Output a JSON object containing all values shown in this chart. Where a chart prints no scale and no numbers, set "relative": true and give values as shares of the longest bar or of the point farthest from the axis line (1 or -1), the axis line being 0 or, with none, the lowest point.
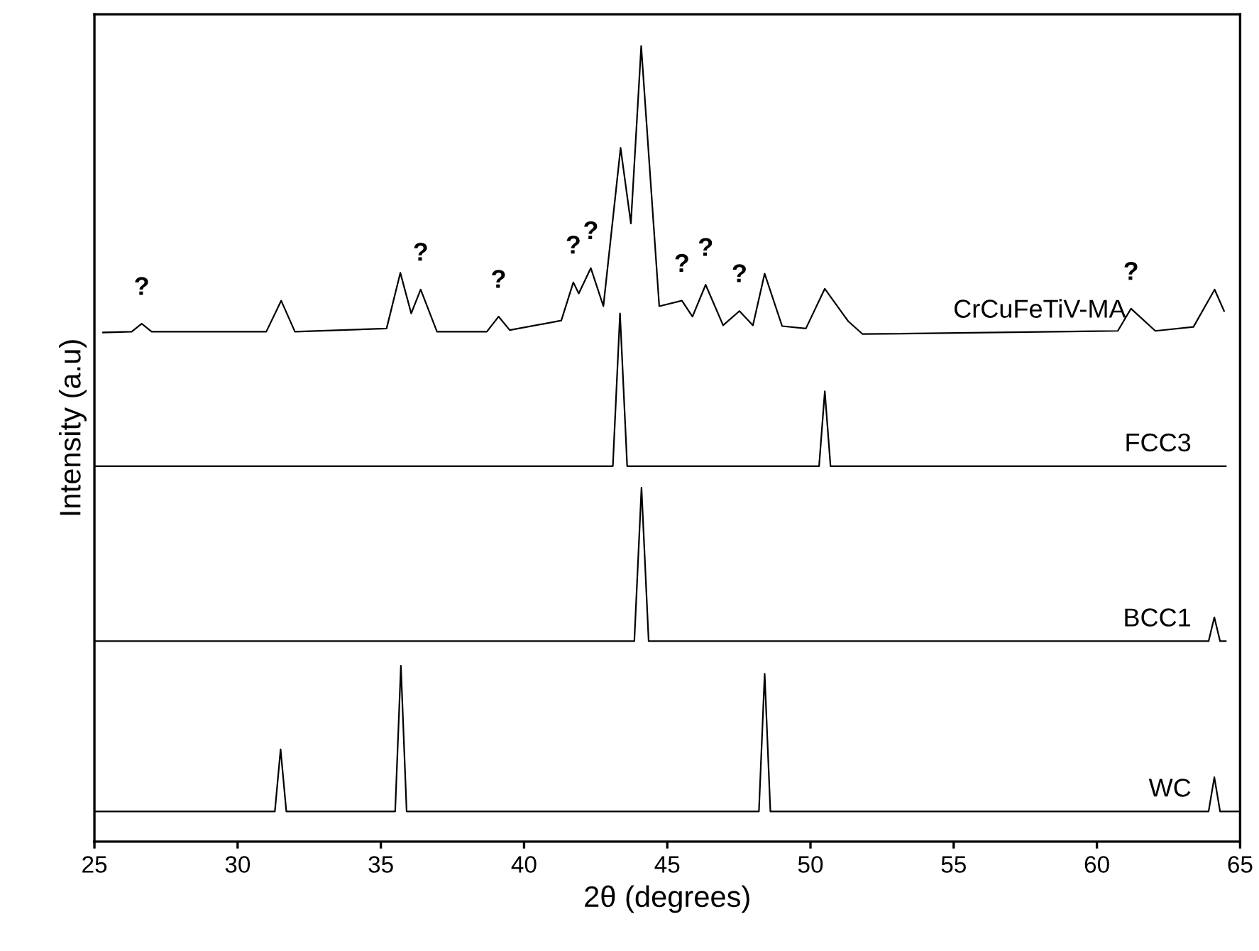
{
  "chart_data": {
    "type": "line",
    "relative": true,
    "xlabel": "2θ (degrees)",
    "ylabel": "Intensity (a.u)",
    "xlim": [
      25,
      65
    ],
    "xticks": [
      25,
      30,
      35,
      40,
      45,
      50,
      55,
      60,
      65
    ],
    "tick_labels": "x",
    "grid": false,
    "marker": "none",
    "line_style": "solid",
    "series": [
      {
        "name": "CrCuFeTiV-MA",
        "color": "#000000",
        "x": [
          25.3,
          26.3,
          26.65,
          27.0,
          31.0,
          31.52,
          32.0,
          35.2,
          35.68,
          36.06,
          36.39,
          36.96,
          38.7,
          39.11,
          39.5,
          41.3,
          41.72,
          41.91,
          42.33,
          42.77,
          43.37,
          43.73,
          44.09,
          44.72,
          45.51,
          45.88,
          46.34,
          46.95,
          47.52,
          47.99,
          48.4,
          49.01,
          49.84,
          50.5,
          51.32,
          51.82,
          60.73,
          61.19,
          62.04,
          63.37,
          64.11,
          64.44
        ],
        "values": [
          0.64,
          0.641,
          0.651,
          0.641,
          0.641,
          0.68,
          0.641,
          0.645,
          0.715,
          0.664,
          0.694,
          0.641,
          0.641,
          0.66,
          0.643,
          0.655,
          0.703,
          0.689,
          0.721,
          0.673,
          0.872,
          0.777,
          1.0,
          0.673,
          0.68,
          0.66,
          0.7,
          0.649,
          0.667,
          0.649,
          0.714,
          0.648,
          0.645,
          0.695,
          0.654,
          0.638,
          0.642,
          0.67,
          0.642,
          0.647,
          0.694,
          0.667
        ]
      },
      {
        "name": "FCC3",
        "color": "#000000",
        "x": [
          25.0,
          43.1,
          43.35,
          43.6,
          50.3,
          50.5,
          50.7,
          64.5
        ],
        "values": [
          0.472,
          0.472,
          0.664,
          0.472,
          0.472,
          0.566,
          0.472,
          0.472
        ]
      },
      {
        "name": "BCC1",
        "color": "#000000",
        "x": [
          25.0,
          43.85,
          44.1,
          44.35,
          63.9,
          64.1,
          64.3,
          64.5
        ],
        "values": [
          0.252,
          0.252,
          0.445,
          0.252,
          0.252,
          0.282,
          0.252,
          0.252
        ]
      },
      {
        "name": "WC",
        "color": "#000000",
        "x": [
          25.0,
          31.3,
          31.5,
          31.7,
          35.5,
          35.7,
          35.9,
          48.2,
          48.4,
          48.6,
          63.9,
          64.1,
          64.3,
          65.0
        ],
        "values": [
          0.038,
          0.038,
          0.116,
          0.038,
          0.038,
          0.221,
          0.038,
          0.038,
          0.211,
          0.038,
          0.038,
          0.081,
          0.038,
          0.038
        ]
      }
    ],
    "annotations": [
      {
        "text": "?",
        "x": 26.65,
        "y": 0.651
      },
      {
        "text": "?",
        "x": 36.39,
        "y": 0.694
      },
      {
        "text": "?",
        "x": 39.11,
        "y": 0.66
      },
      {
        "text": "?",
        "x": 41.72,
        "y": 0.703
      },
      {
        "text": "?",
        "x": 42.33,
        "y": 0.721
      },
      {
        "text": "?",
        "x": 45.51,
        "y": 0.68
      },
      {
        "text": "?",
        "x": 46.34,
        "y": 0.7
      },
      {
        "text": "?",
        "x": 47.52,
        "y": 0.667
      },
      {
        "text": "?",
        "x": 61.19,
        "y": 0.67
      }
    ]
  }
}
